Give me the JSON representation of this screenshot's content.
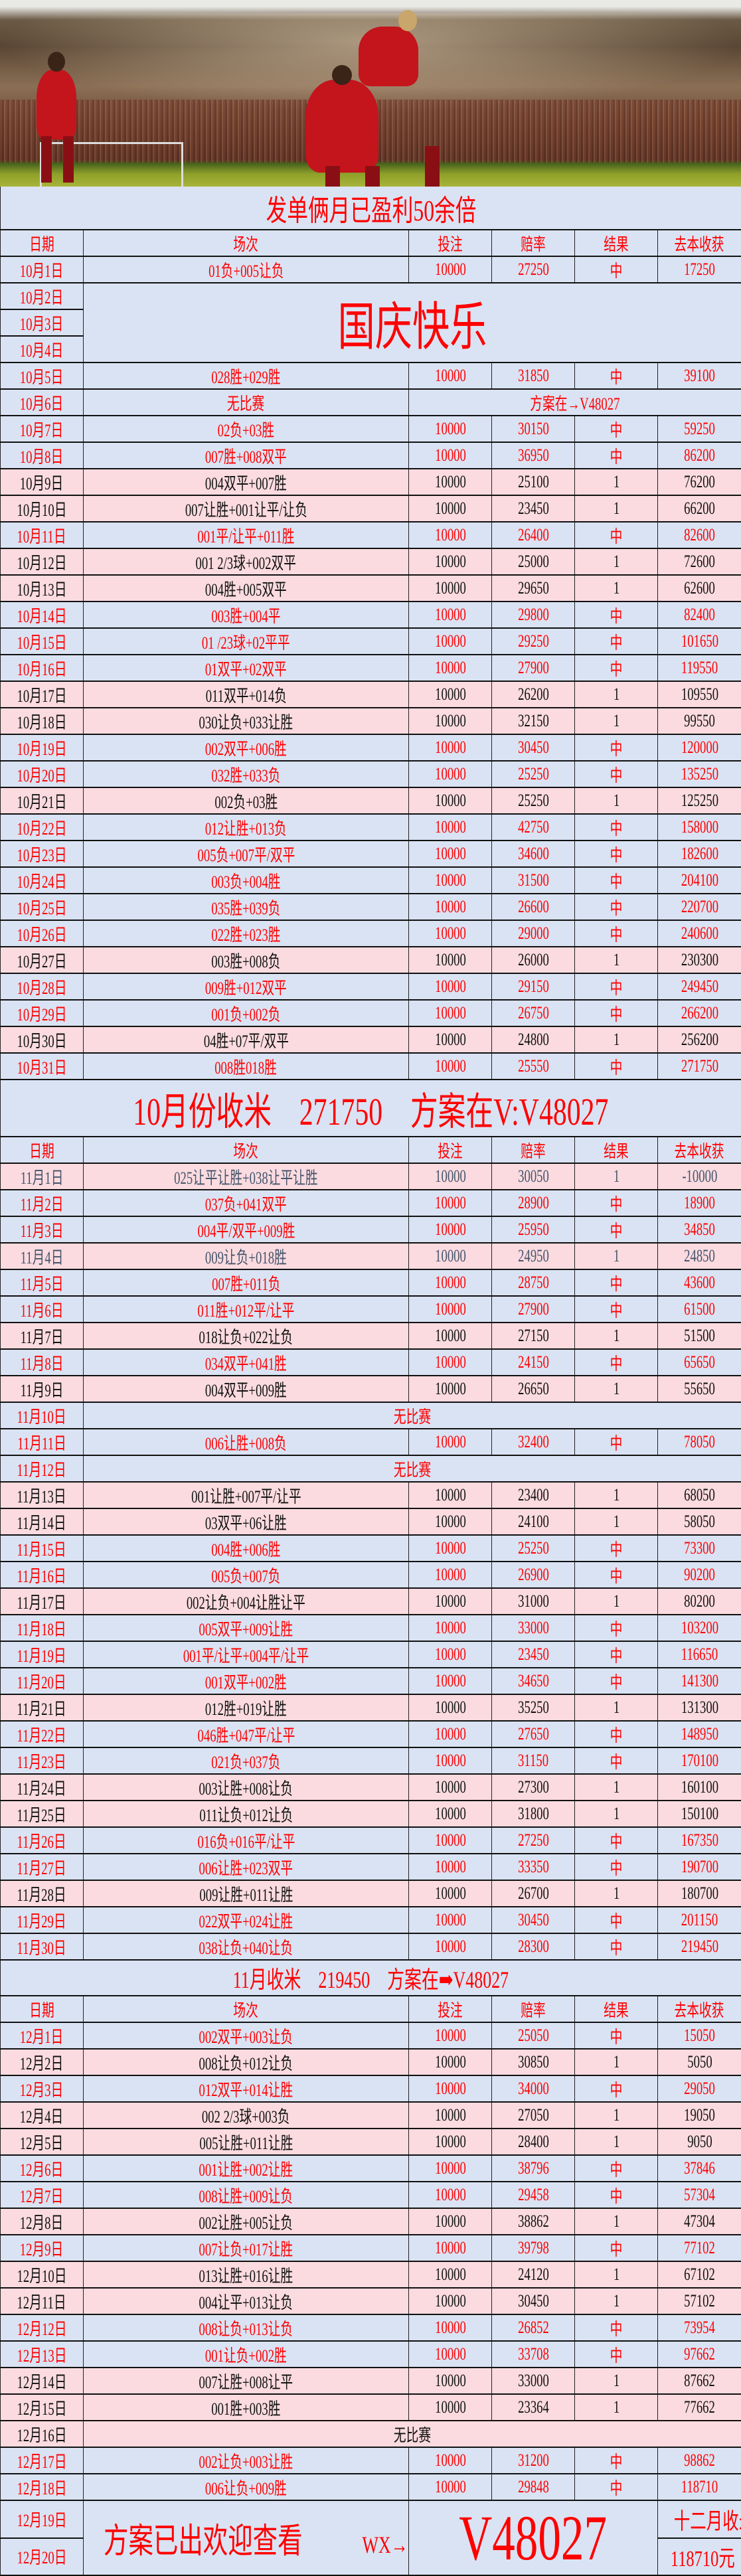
{
  "banner": {
    "title": "发单俩月已盈利50余倍"
  },
  "colors": {
    "win_bg": "#dae3f3",
    "loss_bg": "#fbdbe0",
    "accent": "#ff0000",
    "gray_text": "#44546a"
  },
  "headers": [
    "日期",
    "场次",
    "投注",
    "赔率",
    "结果",
    "去本收获"
  ],
  "october": {
    "first": {
      "date": "10月1日",
      "match": "01负+005让负",
      "stake": "10000",
      "odds": "27250",
      "result": "中",
      "profit": "17250"
    },
    "holiday": {
      "dates": [
        "10月2日",
        "10月3日",
        "10月4日"
      ],
      "text": "国庆快乐"
    },
    "rows": [
      {
        "date": "10月5日",
        "match": "028胜+029胜",
        "stake": "10000",
        "odds": "31850",
        "result": "中",
        "profit": "39100",
        "style": "win"
      },
      {
        "date": "10月6日",
        "match": "无比赛",
        "note": "方案在→V48027",
        "style": "blue"
      },
      {
        "date": "10月7日",
        "match": "02负+03胜",
        "stake": "10000",
        "odds": "30150",
        "result": "中",
        "profit": "59250",
        "style": "win"
      },
      {
        "date": "10月8日",
        "match": "007胜+008双平",
        "stake": "10000",
        "odds": "36950",
        "result": "中",
        "profit": "86200",
        "style": "win"
      },
      {
        "date": "10月9日",
        "match": "004双平+007胜",
        "stake": "10000",
        "odds": "25100",
        "result": "1",
        "profit": "76200",
        "style": "loss"
      },
      {
        "date": "10月10日",
        "match": "007让胜+001让平/让负",
        "stake": "10000",
        "odds": "23450",
        "result": "1",
        "profit": "66200",
        "style": "loss"
      },
      {
        "date": "10月11日",
        "match": "001平/让平+011胜",
        "stake": "10000",
        "odds": "26400",
        "result": "中",
        "profit": "82600",
        "style": "win"
      },
      {
        "date": "10月12日",
        "match": "001  2/3球+002双平",
        "stake": "10000",
        "odds": "25000",
        "result": "1",
        "profit": "72600",
        "style": "loss"
      },
      {
        "date": "10月13日",
        "match": "004胜+005双平",
        "stake": "10000",
        "odds": "29650",
        "result": "1",
        "profit": "62600",
        "style": "loss"
      },
      {
        "date": "10月14日",
        "match": "003胜+004平",
        "stake": "10000",
        "odds": "29800",
        "result": "中",
        "profit": "82400",
        "style": "win"
      },
      {
        "date": "10月15日",
        "match": "01  /23球+02平平",
        "stake": "10000",
        "odds": "29250",
        "result": "中",
        "profit": "101650",
        "style": "win"
      },
      {
        "date": "10月16日",
        "match": "01双平+02双平",
        "stake": "10000",
        "odds": "27900",
        "result": "中",
        "profit": "119550",
        "style": "win"
      },
      {
        "date": "10月17日",
        "match": "011双平+014负",
        "stake": "10000",
        "odds": "26200",
        "result": "1",
        "profit": "109550",
        "style": "loss"
      },
      {
        "date": "10月18日",
        "match": "030让负+033让胜",
        "stake": "10000",
        "odds": "32150",
        "result": "1",
        "profit": "99550",
        "style": "loss"
      },
      {
        "date": "10月19日",
        "match": "002双平+006胜",
        "stake": "10000",
        "odds": "30450",
        "result": "中",
        "profit": "120000",
        "style": "win"
      },
      {
        "date": "10月20日",
        "match": "032胜+033负",
        "stake": "10000",
        "odds": "25250",
        "result": "中",
        "profit": "135250",
        "style": "win"
      },
      {
        "date": "10月21日",
        "match": "002负+03胜",
        "stake": "10000",
        "odds": "25250",
        "result": "1",
        "profit": "125250",
        "style": "loss"
      },
      {
        "date": "10月22日",
        "match": "012让胜+013负",
        "stake": "10000",
        "odds": "42750",
        "result": "中",
        "profit": "158000",
        "style": "win"
      },
      {
        "date": "10月23日",
        "match": "005负+007平/双平",
        "stake": "10000",
        "odds": "34600",
        "result": "中",
        "profit": "182600",
        "style": "win"
      },
      {
        "date": "10月24日",
        "match": "003负+004胜",
        "stake": "10000",
        "odds": "31500",
        "result": "中",
        "profit": "204100",
        "style": "win"
      },
      {
        "date": "10月25日",
        "match": "035胜+039负",
        "stake": "10000",
        "odds": "26600",
        "result": "中",
        "profit": "220700",
        "style": "win"
      },
      {
        "date": "10月26日",
        "match": "022胜+023胜",
        "stake": "10000",
        "odds": "29000",
        "result": "中",
        "profit": "240600",
        "style": "win"
      },
      {
        "date": "10月27日",
        "match": "003胜+008负",
        "stake": "10000",
        "odds": "26000",
        "result": "1",
        "profit": "230300",
        "style": "loss"
      },
      {
        "date": "10月28日",
        "match": "009胜+012双平",
        "stake": "10000",
        "odds": "29150",
        "result": "中",
        "profit": "249450",
        "style": "win"
      },
      {
        "date": "10月29日",
        "match": "001负+002负",
        "stake": "10000",
        "odds": "26750",
        "result": "中",
        "profit": "266200",
        "style": "win"
      },
      {
        "date": "10月30日",
        "match": "04胜+07平/双平",
        "stake": "10000",
        "odds": "24800",
        "result": "1",
        "profit": "256200",
        "style": "loss"
      },
      {
        "date": "10月31日",
        "match": "008胜018胜",
        "stake": "10000",
        "odds": "25550",
        "result": "中",
        "profit": "271750",
        "style": "win"
      }
    ],
    "summary": "10月份收米　271750　方案在V:V48027"
  },
  "november": {
    "rows": [
      {
        "date": "11月1日",
        "match": "025让平让胜+038让平让胜",
        "stake": "10000",
        "odds": "30050",
        "result": "1",
        "profit": "-10000",
        "style": "gray"
      },
      {
        "date": "11月2日",
        "match": "037负+041双平",
        "stake": "10000",
        "odds": "28900",
        "result": "中",
        "profit": "18900",
        "style": "win"
      },
      {
        "date": "11月3日",
        "match": "004平/双平+009胜",
        "stake": "10000",
        "odds": "25950",
        "result": "中",
        "profit": "34850",
        "style": "win"
      },
      {
        "date": "11月4日",
        "match": "009让负+018胜",
        "stake": "10000",
        "odds": "24950",
        "result": "1",
        "profit": "24850",
        "style": "gray"
      },
      {
        "date": "11月5日",
        "match": "007胜+011负",
        "stake": "10000",
        "odds": "28750",
        "result": "中",
        "profit": "43600",
        "style": "win"
      },
      {
        "date": "11月6日",
        "match": "011胜+012平/让平",
        "stake": "10000",
        "odds": "27900",
        "result": "中",
        "profit": "61500",
        "style": "win"
      },
      {
        "date": "11月7日",
        "match": "018让负+022让负",
        "stake": "10000",
        "odds": "27150",
        "result": "1",
        "profit": "51500",
        "style": "loss"
      },
      {
        "date": "11月8日",
        "match": "034双平+041胜",
        "stake": "10000",
        "odds": "24150",
        "result": "中",
        "profit": "65650",
        "style": "win"
      },
      {
        "date": "11月9日",
        "match": "004双平+009胜",
        "stake": "10000",
        "odds": "26650",
        "result": "1",
        "profit": "55650",
        "style": "loss"
      },
      {
        "date": "11月10日",
        "nomatch": "无比赛",
        "style": "blue"
      },
      {
        "date": "11月11日",
        "match": "006让胜+008负",
        "stake": "10000",
        "odds": "32400",
        "result": "中",
        "profit": "78050",
        "style": "win"
      },
      {
        "date": "11月12日",
        "nomatch": "无比赛",
        "style": "blue"
      },
      {
        "date": "11月13日",
        "match": "001让胜+007平/让平",
        "stake": "10000",
        "odds": "23400",
        "result": "1",
        "profit": "68050",
        "style": "loss"
      },
      {
        "date": "11月14日",
        "match": "03双平+06让胜",
        "stake": "10000",
        "odds": "24100",
        "result": "1",
        "profit": "58050",
        "style": "loss"
      },
      {
        "date": "11月15日",
        "match": "004胜+006胜",
        "stake": "10000",
        "odds": "25250",
        "result": "中",
        "profit": "73300",
        "style": "win"
      },
      {
        "date": "11月16日",
        "match": "005负+007负",
        "stake": "10000",
        "odds": "26900",
        "result": "中",
        "profit": "90200",
        "style": "win"
      },
      {
        "date": "11月17日",
        "match": "002让负+004让胜让平",
        "stake": "10000",
        "odds": "31000",
        "result": "1",
        "profit": "80200",
        "style": "loss"
      },
      {
        "date": "11月18日",
        "match": "005双平+009让胜",
        "stake": "10000",
        "odds": "33000",
        "result": "中",
        "profit": "103200",
        "style": "win"
      },
      {
        "date": "11月19日",
        "match": "001平/让平+004平/让平",
        "stake": "10000",
        "odds": "23450",
        "result": "中",
        "profit": "116650",
        "style": "win"
      },
      {
        "date": "11月20日",
        "match": "001双平+002胜",
        "stake": "10000",
        "odds": "34650",
        "result": "中",
        "profit": "141300",
        "style": "win"
      },
      {
        "date": "11月21日",
        "match": "012胜+019让胜",
        "stake": "10000",
        "odds": "35250",
        "result": "1",
        "profit": "131300",
        "style": "loss"
      },
      {
        "date": "11月22日",
        "match": "046胜+047平/让平",
        "stake": "10000",
        "odds": "27650",
        "result": "中",
        "profit": "148950",
        "style": "win"
      },
      {
        "date": "11月23日",
        "match": "021负+037负",
        "stake": "10000",
        "odds": "31150",
        "result": "中",
        "profit": "170100",
        "style": "win"
      },
      {
        "date": "11月24日",
        "match": "003让胜+008让负",
        "stake": "10000",
        "odds": "27300",
        "result": "1",
        "profit": "160100",
        "style": "loss"
      },
      {
        "date": "11月25日",
        "match": "011让负+012让负",
        "stake": "10000",
        "odds": "31800",
        "result": "1",
        "profit": "150100",
        "style": "loss"
      },
      {
        "date": "11月26日",
        "match": "016负+016平/让平",
        "stake": "10000",
        "odds": "27250",
        "result": "中",
        "profit": "167350",
        "style": "win"
      },
      {
        "date": "11月27日",
        "match": "006让胜+023双平",
        "stake": "10000",
        "odds": "33350",
        "result": "中",
        "profit": "190700",
        "style": "win"
      },
      {
        "date": "11月28日",
        "match": "009让胜+011让胜",
        "stake": "10000",
        "odds": "26700",
        "result": "1",
        "profit": "180700",
        "style": "loss"
      },
      {
        "date": "11月29日",
        "match": "022双平+024让胜",
        "stake": "10000",
        "odds": "30450",
        "result": "中",
        "profit": "201150",
        "style": "win"
      },
      {
        "date": "11月30日",
        "match": "038让负+040让负",
        "stake": "10000",
        "odds": "28300",
        "result": "中",
        "profit": "219450",
        "style": "win"
      }
    ],
    "summary": "11月收米　219450　方案在➡V48027"
  },
  "december": {
    "rows": [
      {
        "date": "12月1日",
        "match": "002双平+003让负",
        "stake": "10000",
        "odds": "25050",
        "result": "中",
        "profit": "15050",
        "style": "win"
      },
      {
        "date": "12月2日",
        "match": "008让负+012让负",
        "stake": "10000",
        "odds": "30850",
        "result": "1",
        "profit": "5050",
        "style": "loss"
      },
      {
        "date": "12月3日",
        "match": "012双平+014让胜",
        "stake": "10000",
        "odds": "34000",
        "result": "中",
        "profit": "29050",
        "style": "win"
      },
      {
        "date": "12月4日",
        "match": "002  2/3球+003负",
        "stake": "10000",
        "odds": "27050",
        "result": "1",
        "profit": "19050",
        "style": "loss"
      },
      {
        "date": "12月5日",
        "match": "005让胜+011让胜",
        "stake": "10000",
        "odds": "28400",
        "result": "1",
        "profit": "9050",
        "style": "loss"
      },
      {
        "date": "12月6日",
        "match": "001让胜+002让胜",
        "stake": "10000",
        "odds": "38796",
        "result": "中",
        "profit": "37846",
        "style": "win"
      },
      {
        "date": "12月7日",
        "match": "008让胜+009让负",
        "stake": "10000",
        "odds": "29458",
        "result": "中",
        "profit": "57304",
        "style": "win"
      },
      {
        "date": "12月8日",
        "match": "002让胜+005让负",
        "stake": "10000",
        "odds": "38862",
        "result": "1",
        "profit": "47304",
        "style": "loss"
      },
      {
        "date": "12月9日",
        "match": "007让负+017让胜",
        "stake": "10000",
        "odds": "39798",
        "result": "中",
        "profit": "77102",
        "style": "win"
      },
      {
        "date": "12月10日",
        "match": "013让胜+016让胜",
        "stake": "10000",
        "odds": "24120",
        "result": "1",
        "profit": "67102",
        "style": "loss"
      },
      {
        "date": "12月11日",
        "match": "004让平+013让负",
        "stake": "10000",
        "odds": "30450",
        "result": "1",
        "profit": "57102",
        "style": "loss"
      },
      {
        "date": "12月12日",
        "match": "008让负+013让负",
        "stake": "10000",
        "odds": "26852",
        "result": "中",
        "profit": "73954",
        "style": "win"
      },
      {
        "date": "12月13日",
        "match": "001让负+002胜",
        "stake": "10000",
        "odds": "33708",
        "result": "中",
        "profit": "97662",
        "style": "win"
      },
      {
        "date": "12月14日",
        "match": "007让胜+008让平",
        "stake": "10000",
        "odds": "33000",
        "result": "1",
        "profit": "87662",
        "style": "loss"
      },
      {
        "date": "12月15日",
        "match": "001胜+003胜",
        "stake": "10000",
        "odds": "23364",
        "result": "1",
        "profit": "77662",
        "style": "loss"
      },
      {
        "date": "12月16日",
        "nomatch": "无比赛",
        "style": "loss"
      },
      {
        "date": "12月17日",
        "match": "002让负+003让胜",
        "stake": "10000",
        "odds": "31200",
        "result": "中",
        "profit": "98862",
        "style": "win"
      },
      {
        "date": "12月18日",
        "match": "006让负+009胜",
        "stake": "10000",
        "odds": "29848",
        "result": "中",
        "profit": "118710",
        "style": "win"
      }
    ],
    "footer": {
      "dates": [
        "12月19日",
        "12月20日"
      ],
      "message": "方案已出欢迎查看",
      "wx": "WX→",
      "code": "V48027",
      "total_label": "十二月收米",
      "total_value": "118710元"
    }
  }
}
